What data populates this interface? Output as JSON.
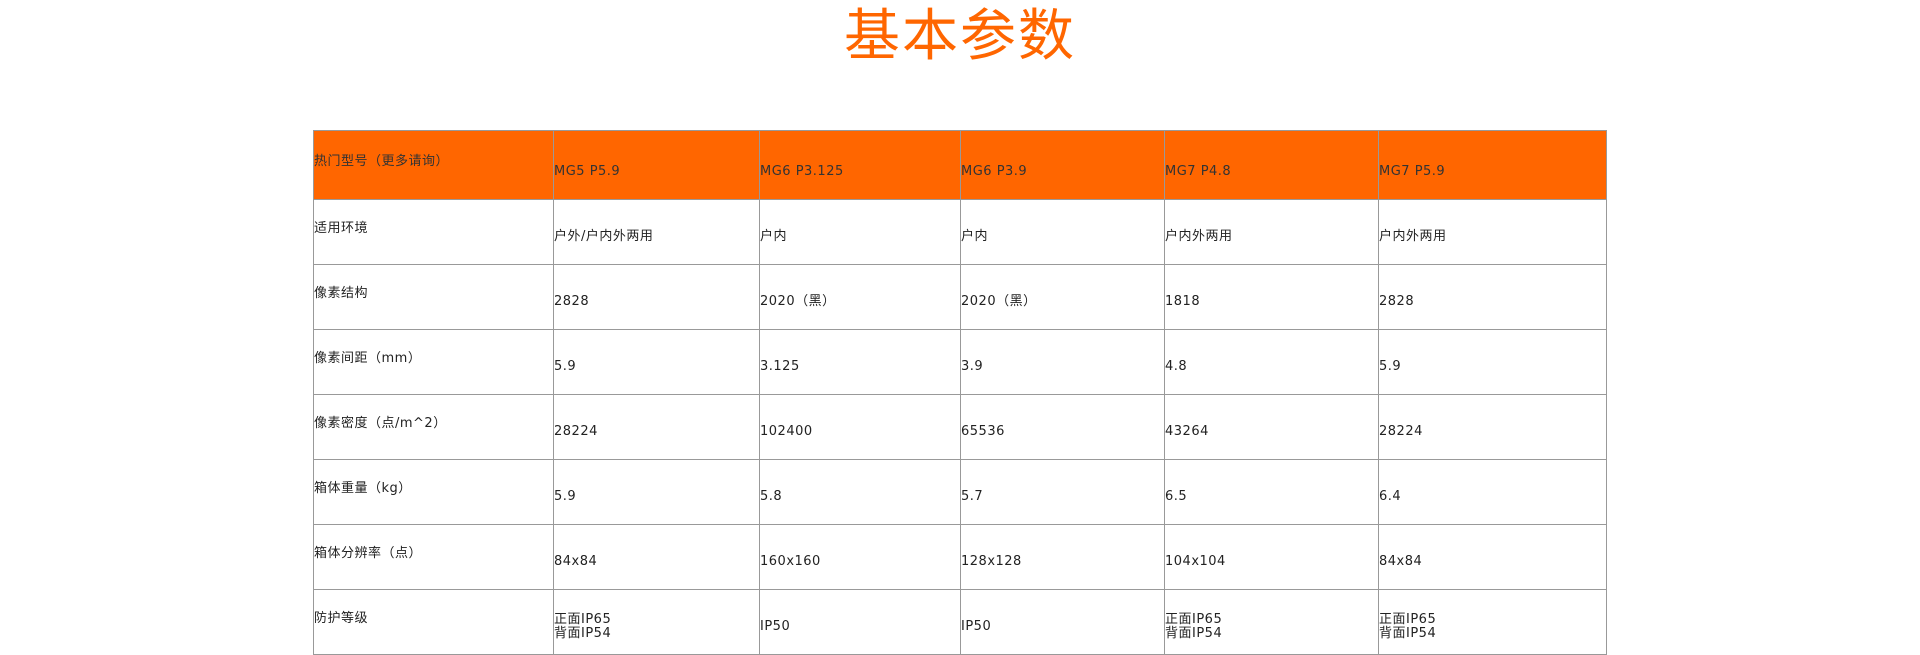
{
  "title": "基本参数",
  "colors": {
    "accent": "#ff6600",
    "border": "#999999"
  },
  "table": {
    "header": {
      "label": "热门型号（更多请询）",
      "models": [
        "MG5 P5.9",
        "MG6 P3.125",
        "MG6 P3.9",
        "MG7 P4.8",
        "MG7 P5.9"
      ]
    },
    "rows": [
      {
        "label": "适用环境",
        "values": [
          "户外/户内外两用",
          "户内",
          "户内",
          "户内外两用",
          "户内外两用"
        ]
      },
      {
        "label": "像素结构",
        "values": [
          "2828",
          "2020（黑）",
          "2020（黑）",
          "1818",
          "2828"
        ]
      },
      {
        "label": "像素间距（mm）",
        "values": [
          "5.9",
          "3.125",
          "3.9",
          "4.8",
          "5.9"
        ]
      },
      {
        "label": "像素密度（点/m^2）",
        "values": [
          "28224",
          "102400",
          "65536",
          "43264",
          "28224"
        ]
      },
      {
        "label": "箱体重量（kg）",
        "values": [
          "5.9",
          "5.8",
          "5.7",
          "6.5",
          "6.4"
        ]
      },
      {
        "label": "箱体分辨率（点）",
        "values": [
          "84x84",
          "160x160",
          "128x128",
          "104x104",
          "84x84"
        ]
      },
      {
        "label": "防护等级",
        "values": [
          [
            "正面IP65",
            "背面IP54"
          ],
          [
            "IP50"
          ],
          [
            "IP50"
          ],
          [
            "正面IP65",
            "背面IP54"
          ],
          [
            "正面IP65",
            "背面IP54"
          ]
        ]
      }
    ]
  }
}
